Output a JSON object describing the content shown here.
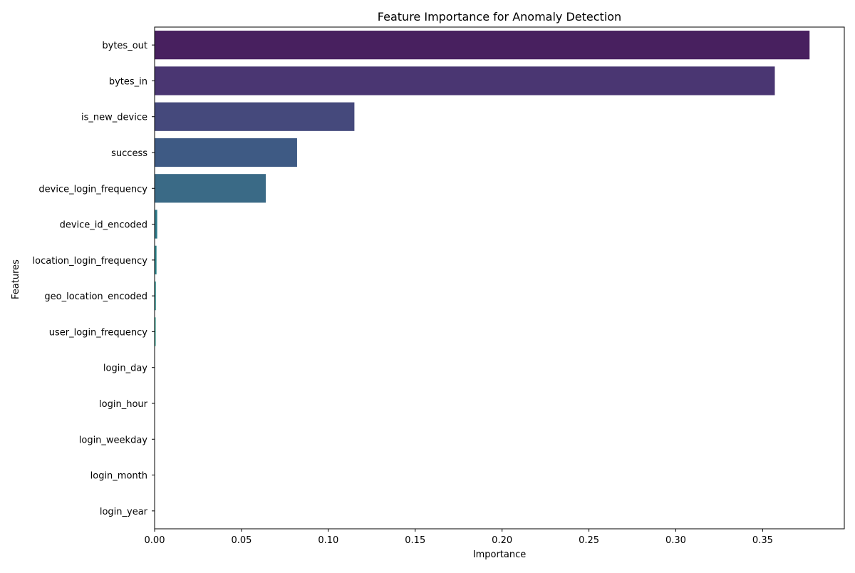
{
  "chart_data": {
    "type": "bar",
    "orientation": "horizontal",
    "title": "Feature Importance for Anomaly Detection",
    "xlabel": "Importance",
    "ylabel": "Features",
    "xlim": [
      0,
      0.397
    ],
    "xticks": [
      "0.00",
      "0.05",
      "0.10",
      "0.15",
      "0.20",
      "0.25",
      "0.30",
      "0.35"
    ],
    "grid": false,
    "categories": [
      "bytes_out",
      "bytes_in",
      "is_new_device",
      "success",
      "device_login_frequency",
      "device_id_encoded",
      "location_login_frequency",
      "geo_location_encoded",
      "user_login_frequency",
      "login_day",
      "login_hour",
      "login_weekday",
      "login_month",
      "login_year"
    ],
    "values": [
      0.377,
      0.357,
      0.115,
      0.082,
      0.064,
      0.0015,
      0.0011,
      0.0007,
      0.0006,
      0,
      0,
      0,
      0,
      0
    ],
    "colors": [
      "#48205f",
      "#4a3672",
      "#45497c",
      "#3e5a84",
      "#3a6a86",
      "#2e7b8b",
      "#2c868c",
      "#21918c",
      "#1f9e89",
      "#25ab82",
      "#35b778",
      "#51c369",
      "#70cf57",
      "#97d83e"
    ]
  }
}
